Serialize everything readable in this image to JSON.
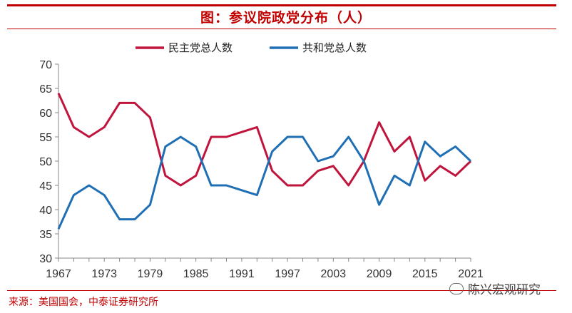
{
  "header": {
    "title": "图：参议院政党分布（人）"
  },
  "footer": {
    "source": "来源：美国国会，中泰证券研究所",
    "watermark": "陈兴宏观研究"
  },
  "colors": {
    "accent": "#c00000",
    "dem": "#c0143c",
    "rep": "#1f6fb5"
  },
  "chart_data": {
    "type": "line",
    "x": [
      1967,
      1969,
      1971,
      1973,
      1975,
      1977,
      1979,
      1981,
      1983,
      1985,
      1987,
      1989,
      1991,
      1993,
      1995,
      1997,
      1999,
      2001,
      2003,
      2005,
      2007,
      2009,
      2011,
      2013,
      2015,
      2017,
      2019,
      2021
    ],
    "series": [
      {
        "name": "民主党总人数",
        "color": "#c0143c",
        "values": [
          64,
          57,
          55,
          57,
          62,
          62,
          59,
          47,
          45,
          47,
          55,
          55,
          56,
          57,
          48,
          45,
          45,
          48,
          49,
          45,
          50,
          58,
          52,
          55,
          46,
          49,
          47,
          50
        ]
      },
      {
        "name": "共和党总人数",
        "color": "#1f6fb5",
        "values": [
          36,
          43,
          45,
          43,
          38,
          38,
          41,
          53,
          55,
          53,
          45,
          45,
          44,
          43,
          52,
          55,
          55,
          50,
          51,
          55,
          50,
          41,
          47,
          45,
          54,
          51,
          53,
          50
        ]
      }
    ],
    "xticks": [
      "1967",
      "1973",
      "1979",
      "1985",
      "1991",
      "1997",
      "2003",
      "2009",
      "2015",
      "2021"
    ],
    "yticks": [
      "30",
      "35",
      "40",
      "45",
      "50",
      "55",
      "60",
      "65",
      "70"
    ],
    "xlim": [
      1967,
      2021
    ],
    "ylim": [
      30,
      70
    ],
    "grid": false,
    "legend": "top-center"
  }
}
